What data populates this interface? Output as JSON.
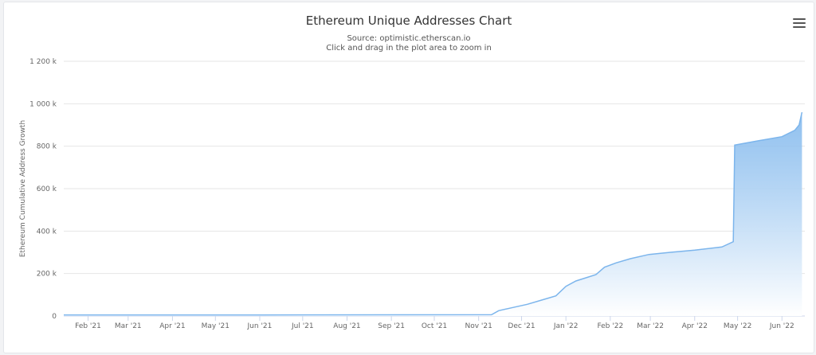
{
  "chart_data": {
    "type": "area",
    "title": "Ethereum Unique Addresses Chart",
    "subtitle_lines": [
      "Source: optimistic.etherscan.io",
      "Click and drag in the plot area to zoom in"
    ],
    "ylabel": "Ethereum Cumulative Address Growth",
    "ylim": [
      0,
      1200000
    ],
    "yticks": [
      {
        "value": 0,
        "label": "0"
      },
      {
        "value": 200000,
        "label": "200 k"
      },
      {
        "value": 400000,
        "label": "400 k"
      },
      {
        "value": 600000,
        "label": "600 k"
      },
      {
        "value": 800000,
        "label": "800 k"
      },
      {
        "value": 1000000,
        "label": "1 000 k"
      },
      {
        "value": 1200000,
        "label": "1 200 k"
      }
    ],
    "xlim": [
      "2021-01-15",
      "2022-06-17"
    ],
    "xticks": [
      {
        "date": "2021-02-01",
        "label": "Feb '21"
      },
      {
        "date": "2021-03-01",
        "label": "Mar '21"
      },
      {
        "date": "2021-04-01",
        "label": "Apr '21"
      },
      {
        "date": "2021-05-01",
        "label": "May '21"
      },
      {
        "date": "2021-06-01",
        "label": "Jun '21"
      },
      {
        "date": "2021-07-01",
        "label": "Jul '21"
      },
      {
        "date": "2021-08-01",
        "label": "Aug '21"
      },
      {
        "date": "2021-09-01",
        "label": "Sep '21"
      },
      {
        "date": "2021-10-01",
        "label": "Oct '21"
      },
      {
        "date": "2021-11-01",
        "label": "Nov '21"
      },
      {
        "date": "2021-12-01",
        "label": "Dec '21"
      },
      {
        "date": "2022-01-01",
        "label": "Jan '22"
      },
      {
        "date": "2022-02-01",
        "label": "Feb '22"
      },
      {
        "date": "2022-03-01",
        "label": "Mar '22"
      },
      {
        "date": "2022-04-01",
        "label": "Apr '22"
      },
      {
        "date": "2022-05-01",
        "label": "May '22"
      },
      {
        "date": "2022-06-01",
        "label": "Jun '22"
      }
    ],
    "grid": true,
    "legend": "none",
    "colors": {
      "line": "#7cb5ec",
      "fill_top": "#7cb5ec",
      "fill_bottom": "#ffffff"
    },
    "series": [
      {
        "values": [
          {
            "date": "2021-01-15",
            "y": 5000
          },
          {
            "date": "2021-06-01",
            "y": 5000
          },
          {
            "date": "2021-11-10",
            "y": 6000
          },
          {
            "date": "2021-11-15",
            "y": 25000
          },
          {
            "date": "2021-11-25",
            "y": 40000
          },
          {
            "date": "2021-12-05",
            "y": 55000
          },
          {
            "date": "2021-12-15",
            "y": 75000
          },
          {
            "date": "2021-12-25",
            "y": 95000
          },
          {
            "date": "2022-01-01",
            "y": 140000
          },
          {
            "date": "2022-01-08",
            "y": 165000
          },
          {
            "date": "2022-01-15",
            "y": 180000
          },
          {
            "date": "2022-01-22",
            "y": 195000
          },
          {
            "date": "2022-01-28",
            "y": 230000
          },
          {
            "date": "2022-02-05",
            "y": 250000
          },
          {
            "date": "2022-02-15",
            "y": 270000
          },
          {
            "date": "2022-02-28",
            "y": 290000
          },
          {
            "date": "2022-03-15",
            "y": 300000
          },
          {
            "date": "2022-04-01",
            "y": 310000
          },
          {
            "date": "2022-04-20",
            "y": 325000
          },
          {
            "date": "2022-04-28",
            "y": 350000
          },
          {
            "date": "2022-04-29",
            "y": 805000
          },
          {
            "date": "2022-05-15",
            "y": 825000
          },
          {
            "date": "2022-06-01",
            "y": 845000
          },
          {
            "date": "2022-06-10",
            "y": 875000
          },
          {
            "date": "2022-06-13",
            "y": 900000
          },
          {
            "date": "2022-06-15",
            "y": 960000
          }
        ]
      }
    ]
  }
}
